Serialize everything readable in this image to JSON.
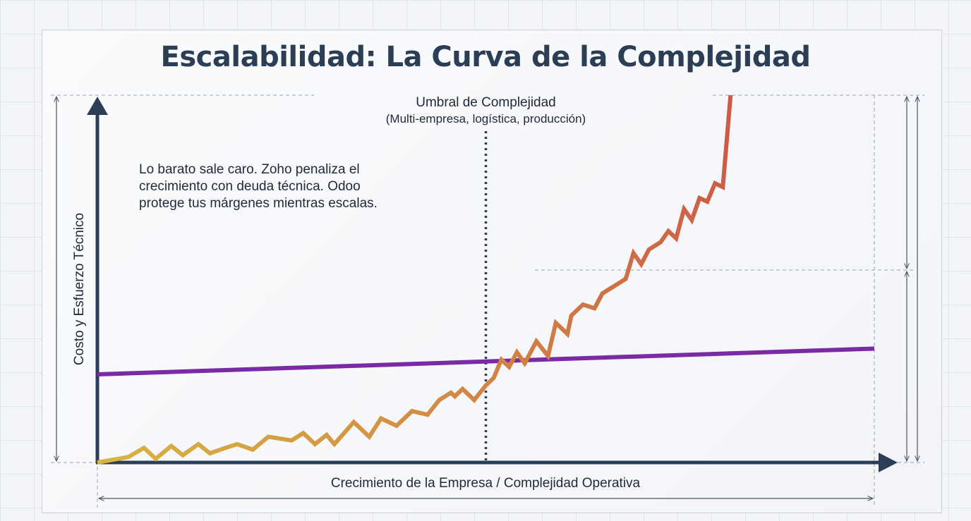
{
  "chart_data": {
    "type": "line",
    "title": "Escalabilidad: La Curva de la Complejidad",
    "xlabel": "Crecimiento de la Empresa / Complejidad Operativa",
    "ylabel": "Costo y Esfuerzo Técnico",
    "xlim": [
      0,
      100
    ],
    "ylim": [
      0,
      100
    ],
    "annotation": {
      "lines": [
        "Lo barato sale caro. Zoho penaliza el",
        "crecimiento con deuda técnica. Odoo",
        "protege tus márgenes mientras escalas."
      ]
    },
    "threshold": {
      "x": 50,
      "label": "Umbral de Complejidad",
      "sublabel": "(Multi-empresa, logística, producción)"
    },
    "series": [
      {
        "color": "#7b2aa5",
        "x": [
          0,
          100
        ],
        "y": [
          24,
          31
        ]
      },
      {
        "color_start": "#d8b443",
        "color_end": "#cc5a45",
        "x": [
          0,
          4,
          6,
          7.5,
          9.5,
          11,
          13,
          14.5,
          16.5,
          18,
          20,
          22,
          25,
          26.5,
          28,
          29.5,
          30.5,
          33,
          35,
          36.5,
          38.5,
          40.5,
          42.5,
          44,
          45.5,
          46,
          47,
          48.5,
          50,
          51,
          52,
          53,
          54,
          55,
          56.5,
          58,
          59,
          60.5,
          61,
          62.5,
          64,
          65,
          66.5,
          68,
          69,
          70,
          71,
          72.5,
          73.5,
          74.5,
          75.5,
          76.5,
          77.5,
          78.5,
          79.5,
          80.5,
          81.5
        ],
        "y": [
          0,
          1.5,
          4,
          1,
          4.5,
          2,
          5,
          2.5,
          4,
          5,
          3.5,
          7,
          6,
          8,
          5,
          7.5,
          5,
          11,
          7,
          12,
          10,
          14,
          13,
          17,
          19,
          18,
          20,
          17,
          21,
          23,
          28,
          26,
          30,
          27,
          33,
          29,
          38,
          35,
          40,
          43,
          42,
          46,
          48,
          50,
          57,
          54,
          58,
          60,
          63,
          61,
          69,
          66,
          72,
          71,
          76,
          75,
          100
        ]
      }
    ],
    "grid": false,
    "legend": "none"
  }
}
